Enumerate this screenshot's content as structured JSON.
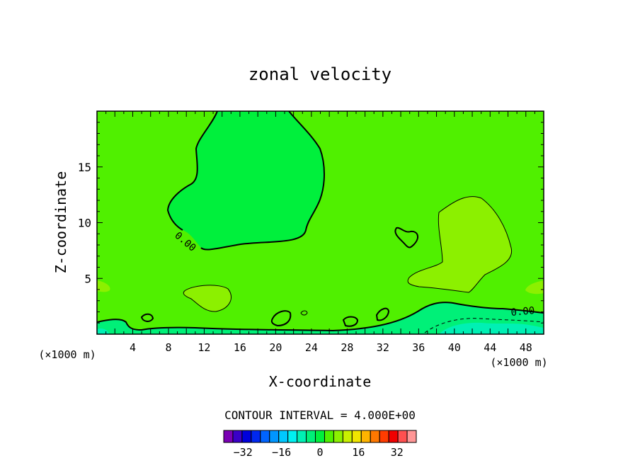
{
  "chart_data": {
    "type": "heatmap",
    "title": "zonal velocity",
    "xlabel": "X-coordinate",
    "ylabel": "Z-coordinate",
    "x_unit_label": "(×1000 m)",
    "xlim": [
      0,
      50
    ],
    "ylim": [
      0,
      20
    ],
    "x_ticks": [
      4,
      8,
      12,
      16,
      20,
      24,
      28,
      32,
      36,
      40,
      44,
      48
    ],
    "y_ticks": [
      5,
      10,
      15
    ],
    "contour_interval_text": "CONTOUR INTERVAL = 4.000E+00",
    "zero_contour_label": "0.00",
    "colorbar": {
      "tick_labels": [
        "−32",
        "−16",
        "0",
        "16",
        "32"
      ],
      "tick_values": [
        -32,
        -16,
        0,
        16,
        32
      ],
      "level_min": -40,
      "level_max": 40,
      "colors": [
        "#7a00b4",
        "#3a00c8",
        "#0000dc",
        "#0028f0",
        "#0064ff",
        "#0096ff",
        "#00c8ff",
        "#00f0f0",
        "#00f0b4",
        "#00f078",
        "#00f03c",
        "#50f000",
        "#8cf000",
        "#c8f000",
        "#f0e600",
        "#ffb400",
        "#ff7800",
        "#ff3c00",
        "#f00000",
        "#ff5050",
        "#ff9696"
      ]
    },
    "regions": [
      {
        "value": 0,
        "color": "#50f000",
        "description": "background"
      },
      {
        "value": -2,
        "color": "#00f03c",
        "description": "negative core aloft"
      },
      {
        "value": 2,
        "color": "#8cf000",
        "description": "positive regions"
      },
      {
        "value": -6,
        "color": "#00f078",
        "description": "near-surface negative flow"
      },
      {
        "value": -10,
        "color": "#00f0b4",
        "description": "strongest near-surface negative flow"
      }
    ]
  }
}
